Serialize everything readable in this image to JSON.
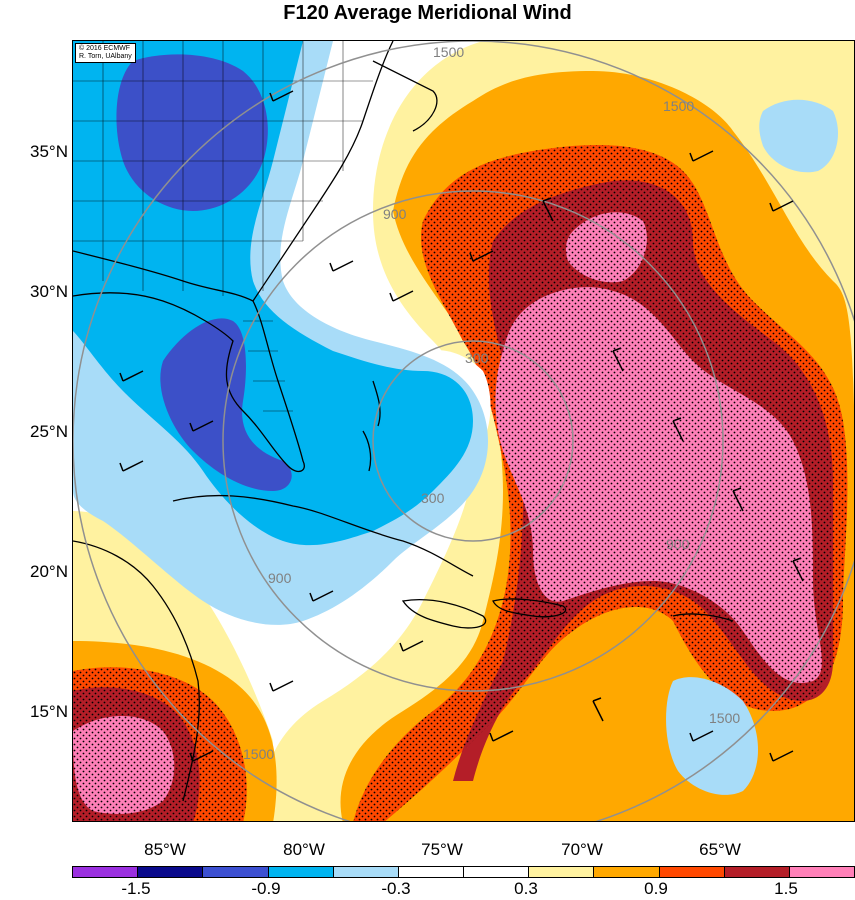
{
  "title": "F120 Average Meridional Wind",
  "credit": {
    "line1": "© 2016 ECMWF",
    "line2": "R. Torn, UAlbany"
  },
  "lat_labels": [
    "35°N",
    "30°N",
    "25°N",
    "20°N",
    "15°N"
  ],
  "lon_labels": [
    "85°W",
    "80°W",
    "75°W",
    "70°W",
    "65°W"
  ],
  "contour_labels": [
    "300",
    "300",
    "900",
    "900",
    "900",
    "1500",
    "1500",
    "1500",
    "1500"
  ],
  "colorbar": {
    "colors": [
      "#9b30e0",
      "#0a0a8c",
      "#3c50d2",
      "#00b4f0",
      "#a8dcf8",
      "#ffffff",
      "#ffffff",
      "#fff2a0",
      "#ffa800",
      "#ff4800",
      "#b41e28",
      "#ff80b8"
    ],
    "labels": [
      "-1.5",
      "-0.9",
      "-0.3",
      "0.3",
      "0.9",
      "1.5"
    ]
  },
  "palette": {
    "darkblue": "#3c50c8",
    "cyan": "#00b4f0",
    "lightblue": "#a8dcf8",
    "yellow": "#fff2a0",
    "orange": "#ffa800",
    "red": "#ff4800",
    "darkred": "#b41e28",
    "pink": "#ff80b8",
    "land": "#000000",
    "range_rings": "#909090"
  }
}
